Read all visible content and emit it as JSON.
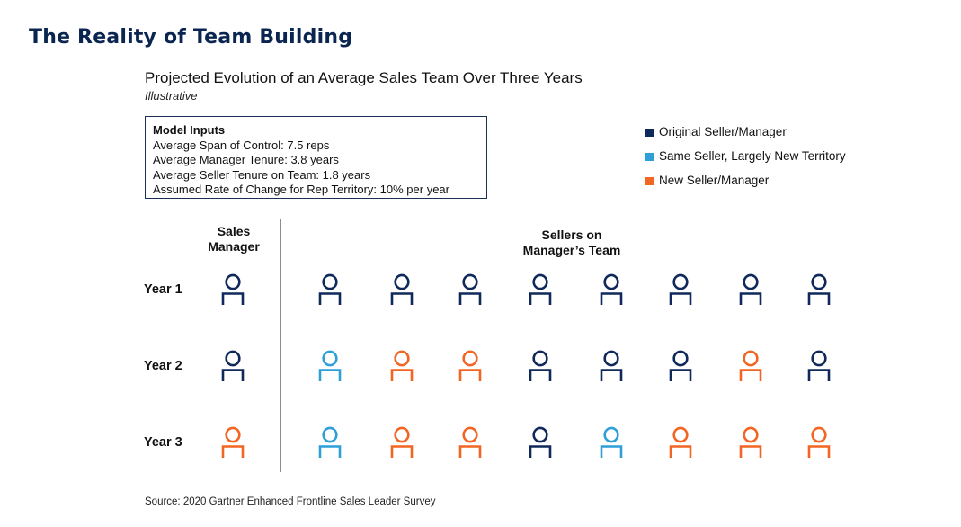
{
  "title": "The Reality of Team Building",
  "subtitle": "Projected Evolution of an Average Sales Team Over Three Years",
  "subtitle_note": "Illustrative",
  "model_inputs": {
    "heading": "Model Inputs",
    "lines": [
      "Average Span of Control: 7.5 reps",
      "Average Manager Tenure: 3.8 years",
      "Average Seller Tenure on Team: 1.8 years",
      "Assumed Rate of Change for Rep Territory: 10% per year"
    ]
  },
  "legend": [
    {
      "key": "original",
      "label": "Original Seller/Manager",
      "color": "#0f2a5a"
    },
    {
      "key": "same",
      "label": "Same Seller, Largely New Territory",
      "color": "#2f9fd8"
    },
    {
      "key": "new",
      "label": "New Seller/Manager",
      "color": "#f26522"
    }
  ],
  "columns": {
    "manager": "Sales\nManager",
    "sellers": "Sellers on\nManager’s Team"
  },
  "rows": [
    {
      "label": "Year 1",
      "manager": "original",
      "sellers": [
        "original",
        "original",
        "original",
        "original",
        "original",
        "original",
        "original",
        "original"
      ]
    },
    {
      "label": "Year 2",
      "manager": "original",
      "sellers": [
        "same",
        "new",
        "new",
        "original",
        "original",
        "original",
        "new",
        "original"
      ]
    },
    {
      "label": "Year 3",
      "manager": "new",
      "sellers": [
        "same",
        "new",
        "new",
        "original",
        "same",
        "new",
        "new",
        "new"
      ]
    }
  ],
  "icon": "person-icon",
  "source": "Source: 2020 Gartner Enhanced Frontline Sales Leader Survey"
}
